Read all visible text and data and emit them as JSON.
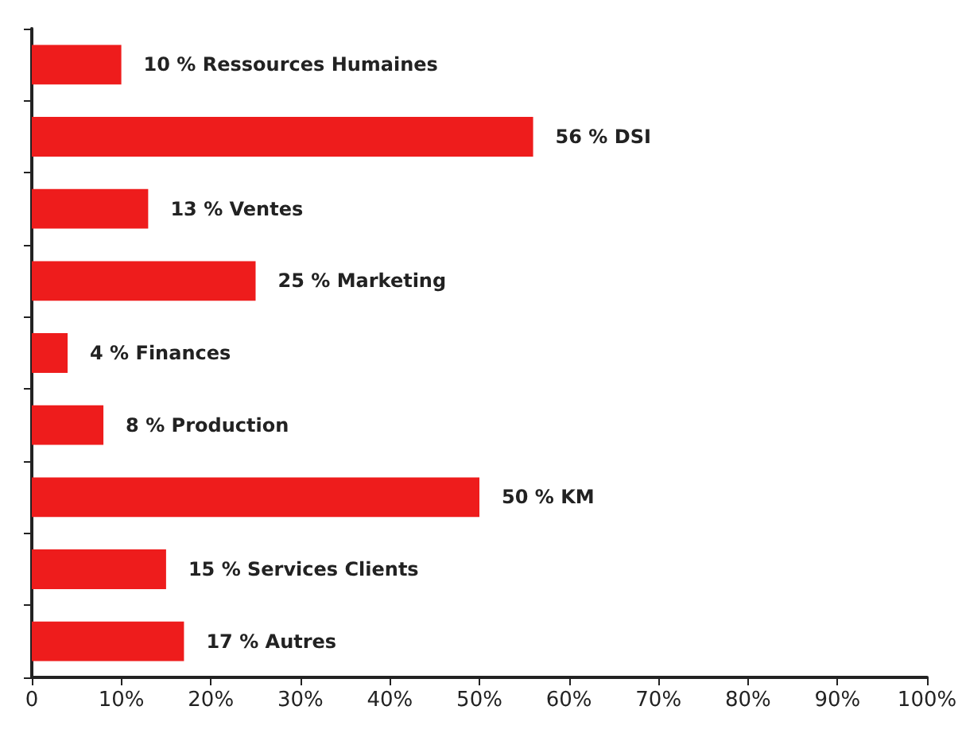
{
  "chart_data": {
    "type": "bar",
    "orientation": "horizontal",
    "categories": [
      "Ressources Humaines",
      "DSI",
      "Ventes",
      "Marketing",
      "Finances",
      "Production",
      "KM",
      "Services Clients",
      "Autres"
    ],
    "values": [
      10,
      56,
      13,
      25,
      4,
      8,
      50,
      15,
      17
    ],
    "value_labels": [
      "10 %",
      "56 %",
      "13 %",
      "25 %",
      "4 %",
      "8 %",
      "50 %",
      "15 %",
      "17 %"
    ],
    "color": "#ee1c1c",
    "xlim": [
      0,
      100
    ],
    "xticks": [
      {
        "value": 0,
        "label": "0"
      },
      {
        "value": 10,
        "label": "10%"
      },
      {
        "value": 20,
        "label": "20%"
      },
      {
        "value": 30,
        "label": "30%"
      },
      {
        "value": 40,
        "label": "40%"
      },
      {
        "value": 50,
        "label": "50%"
      },
      {
        "value": 60,
        "label": "60%"
      },
      {
        "value": 70,
        "label": "70%"
      },
      {
        "value": 80,
        "label": "80%"
      },
      {
        "value": 90,
        "label": "90%"
      },
      {
        "value": 100,
        "label": "100%"
      }
    ],
    "tick_labels": "x"
  }
}
